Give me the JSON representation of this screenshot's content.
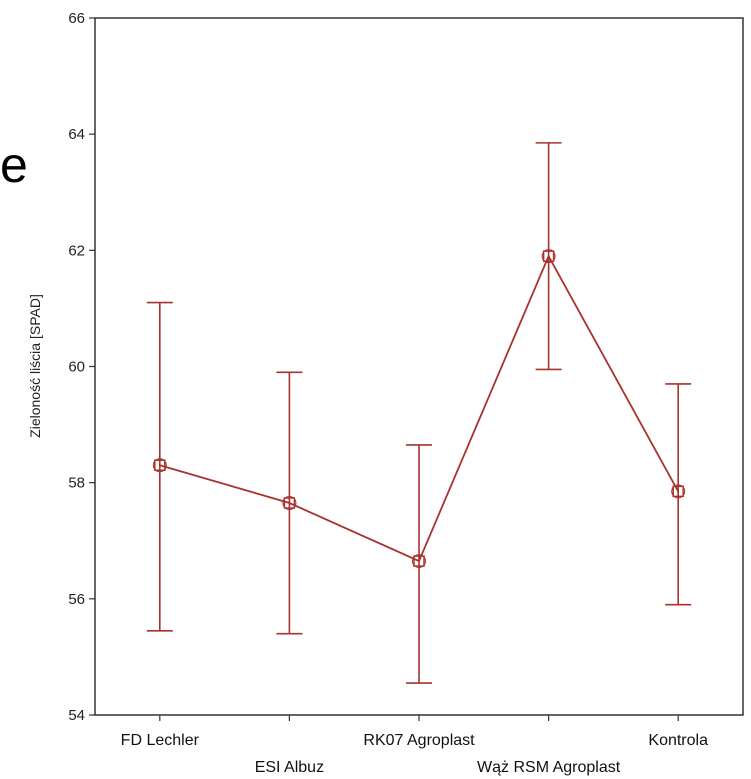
{
  "stray_text": "e",
  "chart_data": {
    "type": "line",
    "title": "",
    "xlabel": "",
    "ylabel": "Zieloność liścia [SPAD]",
    "ylim": [
      54,
      66
    ],
    "yticks": [
      54,
      56,
      58,
      60,
      62,
      64,
      66
    ],
    "categories": [
      "FD Lechler",
      "ESI Albuz",
      "RK07 Agroplast",
      "Wąż RSM Agroplast",
      "Kontrola"
    ],
    "series": [
      {
        "values": [
          58.3,
          57.65,
          56.65,
          61.9,
          57.85
        ],
        "lower": [
          55.45,
          55.4,
          54.55,
          59.95,
          55.9
        ],
        "upper": [
          61.1,
          59.9,
          58.65,
          63.85,
          59.7
        ],
        "color": "#a8322e"
      }
    ],
    "grid": false,
    "legend": "none"
  }
}
